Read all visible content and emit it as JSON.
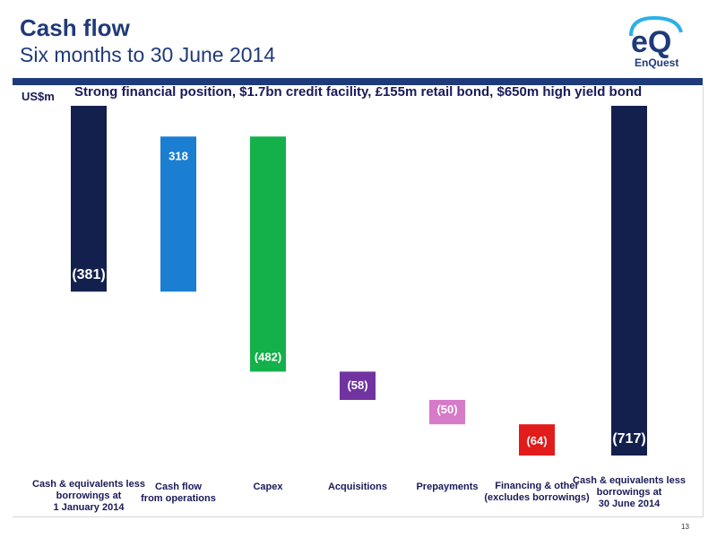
{
  "header": {
    "title": "Cash flow",
    "subtitle": "Six months to 30 June 2014",
    "logo_text": "EnQuest",
    "logo_mark": "eQ"
  },
  "unit_label": "US$m",
  "headline": "Strong financial position, $1.7bn credit facility, £155m retail bond, $650m high yield bond",
  "page_number": "13",
  "colors": {
    "brand": "#1f3a7a",
    "navy": "#13204d",
    "blue": "#1a7fd1",
    "green": "#14b04a",
    "purple": "#7033a0",
    "pink": "#d77ac8",
    "red": "#e21b1b"
  },
  "chart_data": {
    "type": "bar",
    "subtype": "waterfall",
    "title": "",
    "ylabel": "US$m",
    "categories": [
      "Cash & equivalents less\nborrowings at\n1 January  2014",
      "Cash flow\nfrom operations",
      "Capex",
      "Acquisitions",
      "Prepayments",
      "Financing & other\n(excludes borrowings)",
      "Cash & equivalents less\nborrowings at\n30 June 2014"
    ],
    "values": [
      -381,
      318,
      -482,
      -58,
      -50,
      -64,
      -717
    ],
    "data_labels": [
      "(381)",
      "318",
      "(482)",
      "(58)",
      "(50)",
      "(64)",
      "(717)"
    ],
    "bar_kinds": [
      "total",
      "delta",
      "delta",
      "delta",
      "delta",
      "delta",
      "total"
    ],
    "bar_colors": [
      "#13204d",
      "#1a7fd1",
      "#14b04a",
      "#7033a0",
      "#d77ac8",
      "#e21b1b",
      "#13204d"
    ],
    "ylim": [
      -717,
      0
    ],
    "grid": false,
    "legend": "none"
  }
}
